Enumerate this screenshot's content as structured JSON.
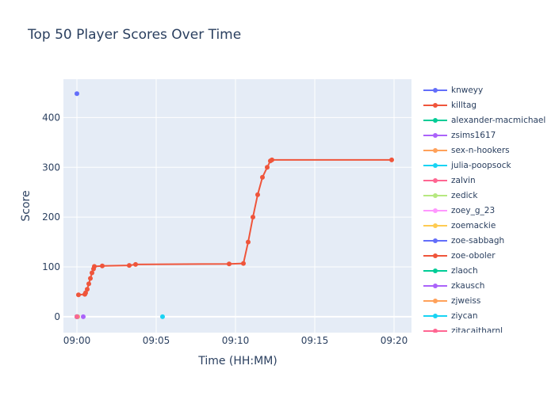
{
  "chart_data": {
    "type": "line",
    "title": "Top 50 Player Scores Over Time",
    "xlabel": "Time (HH:MM)",
    "ylabel": "Score",
    "x_ticks": [
      "09:00",
      "09:05",
      "09:10",
      "09:15",
      "09:20"
    ],
    "x_tick_minutes": [
      0,
      5,
      10,
      15,
      20
    ],
    "xlim_minutes": [
      -0.85,
      21.1
    ],
    "y_ticks": [
      0,
      100,
      200,
      300,
      400
    ],
    "ylim": [
      -32,
      477
    ],
    "grid": true,
    "legend_placement": "right",
    "series": [
      {
        "name": "knweyy",
        "color": "#636efa",
        "points": [
          [
            0.0,
            448
          ]
        ]
      },
      {
        "name": "killtag",
        "color": "#EF553B",
        "points": [
          [
            0.1,
            44
          ],
          [
            0.5,
            45
          ],
          [
            0.55,
            48
          ],
          [
            0.65,
            55
          ],
          [
            0.75,
            66
          ],
          [
            0.85,
            77
          ],
          [
            0.95,
            88
          ],
          [
            1.05,
            96
          ],
          [
            1.1,
            101
          ],
          [
            1.6,
            102
          ],
          [
            3.3,
            103
          ],
          [
            3.7,
            105
          ],
          [
            9.6,
            106
          ],
          [
            10.5,
            107
          ],
          [
            10.8,
            150
          ],
          [
            11.1,
            200
          ],
          [
            11.4,
            245
          ],
          [
            11.7,
            280
          ],
          [
            12.0,
            300
          ],
          [
            12.2,
            313
          ],
          [
            12.3,
            315
          ],
          [
            19.85,
            315
          ]
        ]
      },
      {
        "name": "alexander-macmichael",
        "color": "#00cc96",
        "points": [
          [
            0.0,
            0
          ]
        ]
      },
      {
        "name": "zsims1617",
        "color": "#ab63fa",
        "points": [
          [
            0.4,
            0
          ]
        ]
      },
      {
        "name": "sex-n-hookers",
        "color": "#FFA15A",
        "points": [
          [
            0.05,
            0
          ]
        ]
      },
      {
        "name": "julia-poopsock",
        "color": "#19d3f3",
        "points": [
          [
            5.4,
            0
          ]
        ]
      },
      {
        "name": "zalvin",
        "color": "#FF6692",
        "points": [
          [
            0.0,
            0
          ]
        ]
      },
      {
        "name": "zedick",
        "color": "#B6E880",
        "points": [
          [
            0.0,
            0
          ]
        ]
      },
      {
        "name": "zoey_g_23",
        "color": "#FF97FF",
        "points": [
          [
            0.0,
            0
          ]
        ]
      },
      {
        "name": "zoemackie",
        "color": "#FECB52",
        "points": [
          [
            0.0,
            0
          ]
        ]
      },
      {
        "name": "zoe-sabbagh",
        "color": "#636efa",
        "points": [
          [
            0.0,
            0
          ]
        ]
      },
      {
        "name": "zoe-oboler",
        "color": "#EF553B",
        "points": [
          [
            0.0,
            0
          ]
        ]
      },
      {
        "name": "zlaoch",
        "color": "#00cc96",
        "points": [
          [
            0.0,
            0
          ]
        ]
      },
      {
        "name": "zkausch",
        "color": "#ab63fa",
        "points": [
          [
            0.0,
            0
          ]
        ]
      },
      {
        "name": "zjweiss",
        "color": "#FFA15A",
        "points": [
          [
            0.0,
            0
          ]
        ]
      },
      {
        "name": "ziycan",
        "color": "#19d3f3",
        "points": [
          [
            0.0,
            0
          ]
        ]
      },
      {
        "name": "zitacaitharnl",
        "color": "#FF6692",
        "points": [
          [
            0.0,
            0
          ]
        ]
      }
    ]
  }
}
